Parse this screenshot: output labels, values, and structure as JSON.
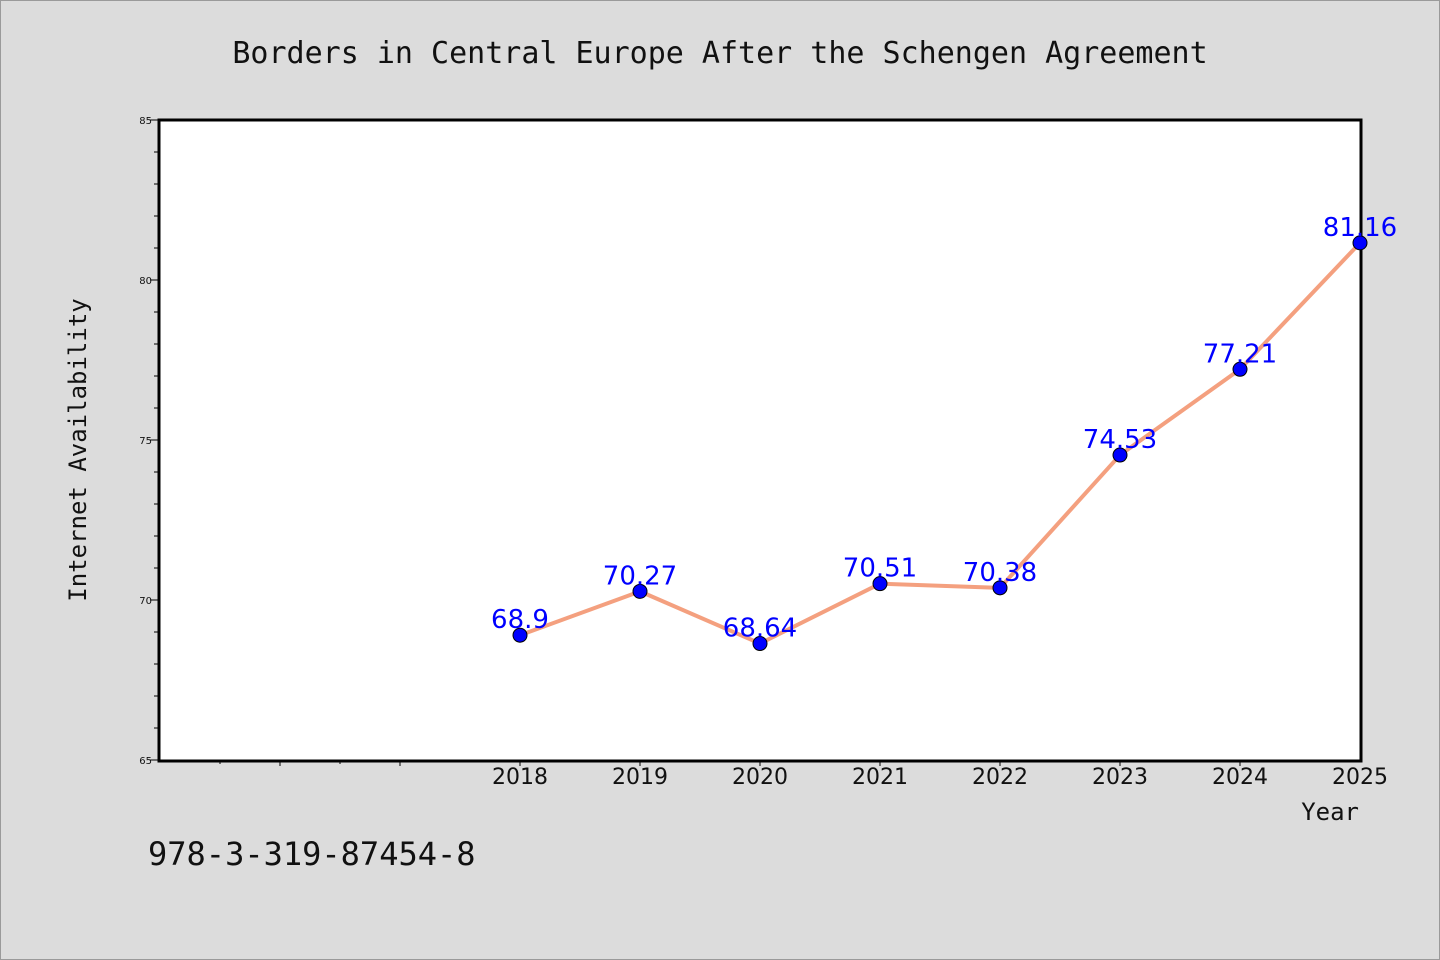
{
  "chart_data": {
    "type": "line",
    "title": "Borders in Central Europe After the Schengen Agreement",
    "xlabel": "Year",
    "ylabel": "Internet Availability",
    "categories": [
      "2018",
      "2019",
      "2020",
      "2021",
      "2022",
      "2023",
      "2024",
      "2025"
    ],
    "values": [
      68.9,
      70.27,
      68.64,
      70.51,
      70.38,
      74.53,
      77.21,
      81.16
    ],
    "data_labels": [
      "68.9",
      "70.27",
      "68.64",
      "70.51",
      "70.38",
      "74.53",
      "77.21",
      "81.16"
    ],
    "ylim": [
      65,
      85
    ],
    "yticks": [
      "65",
      "70",
      "75",
      "80",
      "85"
    ],
    "grid": false,
    "colors": {
      "line": "#f4a07f",
      "marker": "#0000ff",
      "label": "#0000ff"
    }
  },
  "footer": {
    "isbn": "978-3-319-87454-8"
  }
}
